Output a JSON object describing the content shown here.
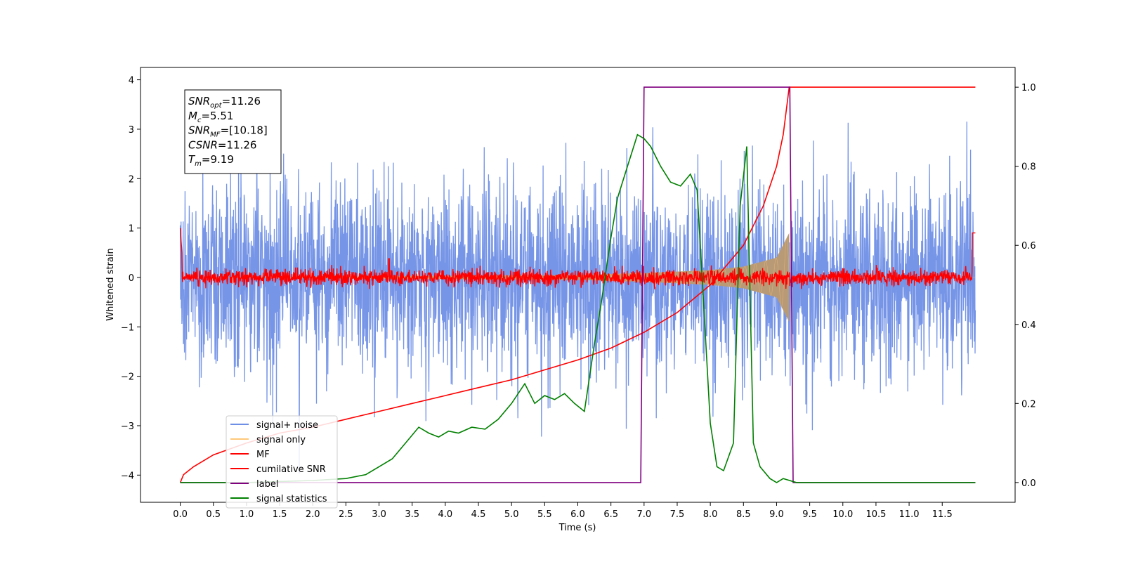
{
  "chart_data": {
    "type": "line",
    "xlabel": "Time (s)",
    "ylabel": "Whitened strain",
    "xlim": [
      -0.6,
      12.6
    ],
    "ylim": [
      -4.55,
      4.25
    ],
    "y2lim": [
      -0.05,
      1.05
    ],
    "x_ticks": [
      "0.0",
      "0.5",
      "1.0",
      "1.5",
      "2.0",
      "2.5",
      "3.0",
      "3.5",
      "4.0",
      "4.5",
      "5.0",
      "5.5",
      "6.0",
      "6.5",
      "7.0",
      "7.5",
      "8.0",
      "8.5",
      "9.0",
      "9.5",
      "10.0",
      "10.5",
      "11.0",
      "11.5"
    ],
    "y_ticks": [
      "4",
      "3",
      "2",
      "1",
      "0",
      "−1",
      "−2",
      "−3",
      "−4"
    ],
    "y2_ticks": [
      "1.0",
      "0.8",
      "0.6",
      "0.4",
      "0.2",
      "0.0"
    ],
    "legend_position": "lower-left",
    "annotation": {
      "lines": [
        {
          "name": "SNR",
          "sub": "opt",
          "value": "=11.26"
        },
        {
          "name": "M",
          "sub": "c",
          "value": "=5.51"
        },
        {
          "name": "SNR",
          "sub": "MF",
          "value": "=[10.18]"
        },
        {
          "name": "CSNR",
          "sub": "",
          "value": "=11.26"
        },
        {
          "name": "T",
          "sub": "m",
          "value": "=9.19"
        }
      ]
    },
    "noise": {
      "amplitude_sigma": 0.95,
      "duration": 12.0
    },
    "signal_only": {
      "merger_time": 9.19,
      "envelope": [
        [
          6.0,
          0.05
        ],
        [
          7.0,
          0.09
        ],
        [
          8.0,
          0.15
        ],
        [
          8.5,
          0.22
        ],
        [
          9.0,
          0.4
        ],
        [
          9.19,
          0.9
        ]
      ]
    },
    "mf_noise_amplitude": 0.08,
    "series": [
      {
        "name": "signal+ noise",
        "color": "#6f8fe6"
      },
      {
        "name": "signal only",
        "color": "#ffc87a"
      },
      {
        "name": "MF",
        "color": "#ff0000"
      },
      {
        "name": "cumilative SNR",
        "color": "#ff0000",
        "axis": "right",
        "x": [
          0.0,
          0.05,
          0.2,
          0.5,
          1.0,
          1.5,
          2.0,
          2.5,
          3.0,
          3.5,
          4.0,
          4.5,
          5.0,
          5.5,
          6.0,
          6.5,
          7.0,
          7.5,
          8.0,
          8.5,
          8.8,
          9.0,
          9.1,
          9.19,
          9.2,
          12.0
        ],
        "y": [
          0.0,
          0.02,
          0.04,
          0.07,
          0.1,
          0.125,
          0.14,
          0.16,
          0.18,
          0.2,
          0.22,
          0.24,
          0.26,
          0.285,
          0.31,
          0.34,
          0.38,
          0.43,
          0.5,
          0.6,
          0.7,
          0.8,
          0.88,
          1.0,
          1.0,
          1.0
        ]
      },
      {
        "name": "label",
        "color": "#800080",
        "axis": "right",
        "x": [
          0.0,
          6.95,
          7.0,
          9.2,
          9.25,
          12.0
        ],
        "y": [
          0.0,
          0.0,
          1.0,
          1.0,
          0.0,
          0.0
        ]
      },
      {
        "name": "signal statistics",
        "color": "#008000",
        "axis": "right",
        "x": [
          0.0,
          1.0,
          2.0,
          2.5,
          2.8,
          3.0,
          3.2,
          3.4,
          3.6,
          3.75,
          3.9,
          4.05,
          4.2,
          4.4,
          4.6,
          4.8,
          5.0,
          5.2,
          5.35,
          5.5,
          5.65,
          5.8,
          5.95,
          6.1,
          6.25,
          6.35,
          6.5,
          6.6,
          6.75,
          6.9,
          7.0,
          7.1,
          7.25,
          7.4,
          7.55,
          7.7,
          7.8,
          7.9,
          8.0,
          8.1,
          8.2,
          8.35,
          8.45,
          8.55,
          8.65,
          8.75,
          8.9,
          9.0,
          9.1,
          9.3,
          10.0,
          11.0,
          12.0
        ],
        "y": [
          0.0,
          0.0,
          0.005,
          0.01,
          0.02,
          0.04,
          0.06,
          0.1,
          0.14,
          0.125,
          0.115,
          0.13,
          0.125,
          0.14,
          0.135,
          0.16,
          0.2,
          0.25,
          0.2,
          0.22,
          0.21,
          0.225,
          0.2,
          0.18,
          0.35,
          0.45,
          0.62,
          0.72,
          0.8,
          0.88,
          0.87,
          0.85,
          0.8,
          0.76,
          0.75,
          0.78,
          0.74,
          0.45,
          0.15,
          0.04,
          0.03,
          0.1,
          0.7,
          0.85,
          0.1,
          0.04,
          0.01,
          0.0,
          0.01,
          0.0,
          0.0,
          0.0,
          0.0
        ]
      }
    ]
  }
}
